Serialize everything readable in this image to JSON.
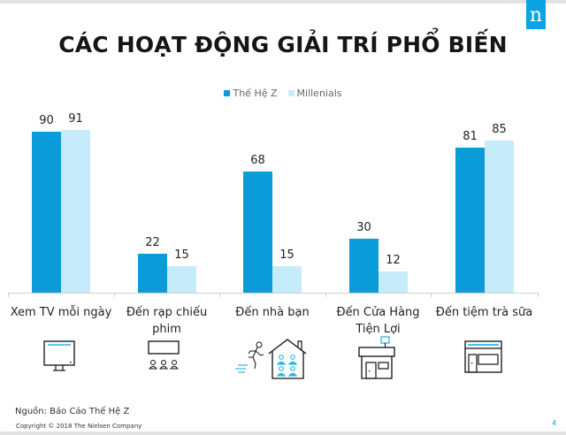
{
  "slide": {
    "title": "CÁC HOẠT ĐỘNG GIẢI TRÍ PHỔ BIẾN",
    "logo_letter": "n",
    "source": "Nguồn: Báo Cáo Thế Hệ Z",
    "copyright": "Copyright © 2018 The Nielsen Company",
    "page_number": "4"
  },
  "colors": {
    "gen_z": "#0a9cd8",
    "millennials": "#c6ecfb",
    "brand": "#0aa4e4"
  },
  "legend": [
    {
      "label": "Thế Hệ Z",
      "color": "#0a9cd8"
    },
    {
      "label": "Millenials",
      "color": "#c6ecfb"
    }
  ],
  "categories": [
    {
      "label": "Xem TV mỗi ngày",
      "icon": "tv-icon",
      "gen_z": "90",
      "millennials": "91"
    },
    {
      "label": "Đến rạp chiếu phim",
      "icon": "cinema-icon",
      "gen_z": "22",
      "millennials": "15"
    },
    {
      "label": "Đến nhà bạn",
      "icon": "friend-house-icon",
      "gen_z": "68",
      "millennials": "15"
    },
    {
      "label": "Đến Cửa Hàng Tiện Lợi",
      "icon": "convenience-store-icon",
      "gen_z": "30",
      "millennials": "12"
    },
    {
      "label": "Đến tiệm trà sữa",
      "icon": "tea-shop-icon",
      "gen_z": "81",
      "millennials": "85"
    }
  ],
  "chart_data": {
    "type": "bar",
    "title": "CÁC HOẠT ĐỘNG GIẢI TRÍ PHỔ BIẾN",
    "categories": [
      "Xem TV mỗi ngày",
      "Đến rạp chiếu phim",
      "Đến nhà bạn",
      "Đến Cửa Hàng Tiện Lợi",
      "Đến tiệm trà sữa"
    ],
    "series": [
      {
        "name": "Thế Hệ Z",
        "values": [
          90,
          22,
          68,
          30,
          81
        ]
      },
      {
        "name": "Millenials",
        "values": [
          91,
          15,
          15,
          12,
          85
        ]
      }
    ],
    "xlabel": "",
    "ylabel": "",
    "ylim": [
      0,
      100
    ],
    "grid": false,
    "legend_position": "top",
    "data_labels": true
  }
}
